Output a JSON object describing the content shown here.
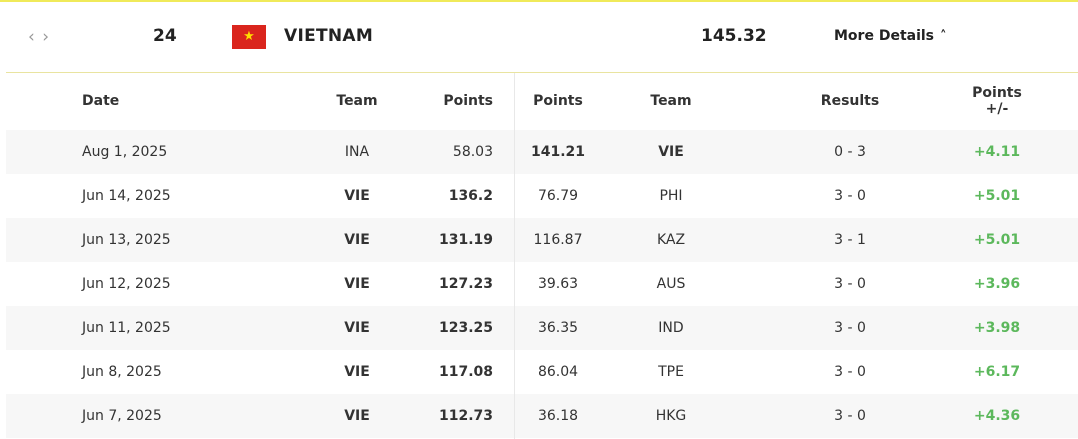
{
  "summary": {
    "rank": "24",
    "country": "VIETNAM",
    "flag_star": "★",
    "points": "145.32",
    "more_details": "More Details",
    "nav_icon": "‹ ›",
    "chevron": "˄"
  },
  "columns": {
    "date": "Date",
    "team1": "Team",
    "points1": "Points",
    "points2": "Points",
    "team2": "Team",
    "results": "Results",
    "pm_line1": "Points",
    "pm_line2": "+/-"
  },
  "rows": [
    {
      "date": "Aug 1, 2025",
      "team1": "INA",
      "points1": "58.03",
      "points2": "141.21",
      "team2": "VIE",
      "result": "0 - 3",
      "pm": "+4.11"
    },
    {
      "date": "Jun 14, 2025",
      "team1": "VIE",
      "points1": "136.2",
      "points2": "76.79",
      "team2": "PHI",
      "result": "3 - 0",
      "pm": "+5.01"
    },
    {
      "date": "Jun 13, 2025",
      "team1": "VIE",
      "points1": "131.19",
      "points2": "116.87",
      "team2": "KAZ",
      "result": "3 - 1",
      "pm": "+5.01"
    },
    {
      "date": "Jun 12, 2025",
      "team1": "VIE",
      "points1": "127.23",
      "points2": "39.63",
      "team2": "AUS",
      "result": "3 - 0",
      "pm": "+3.96"
    },
    {
      "date": "Jun 11, 2025",
      "team1": "VIE",
      "points1": "123.25",
      "points2": "36.35",
      "team2": "IND",
      "result": "3 - 0",
      "pm": "+3.98"
    },
    {
      "date": "Jun 8, 2025",
      "team1": "VIE",
      "points1": "117.08",
      "points2": "86.04",
      "team2": "TPE",
      "result": "3 - 0",
      "pm": "+6.17"
    },
    {
      "date": "Jun 7, 2025",
      "team1": "VIE",
      "points1": "112.73",
      "points2": "36.18",
      "team2": "HKG",
      "result": "3 - 0",
      "pm": "+4.36"
    }
  ]
}
